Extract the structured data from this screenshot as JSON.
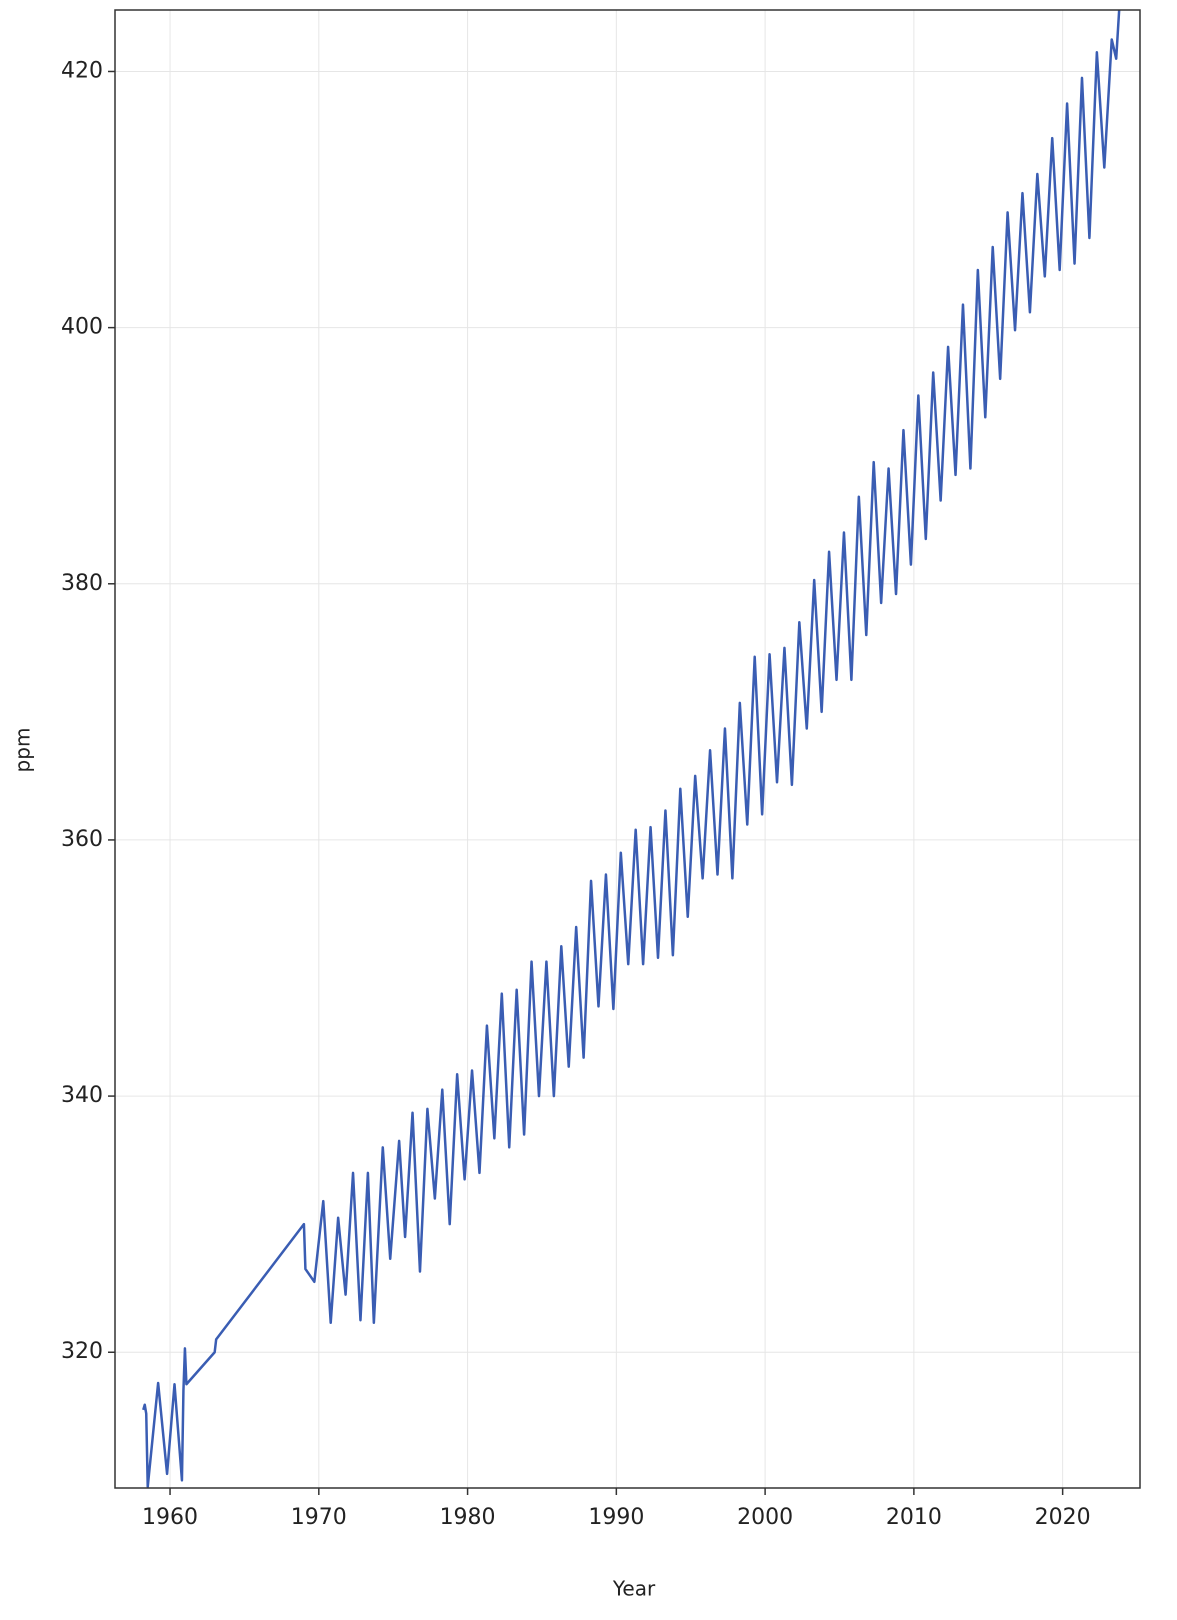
{
  "chart_data": {
    "type": "line",
    "x_label": "Year",
    "y_label": "ppm",
    "x": [
      1958.2,
      1958.3,
      1958.4,
      1958.5,
      1959.2,
      1959.8,
      1960.3,
      1960.8,
      1960.9,
      1961.0,
      1961.1,
      1963.0,
      1963.1,
      1969.0,
      1969.1,
      1969.7,
      1970.3,
      1970.8,
      1971.3,
      1971.8,
      1972.3,
      1972.8,
      1973.3,
      1973.7,
      1974.3,
      1974.8,
      1975.4,
      1975.8,
      1976.3,
      1976.8,
      1977.3,
      1977.8,
      1978.3,
      1978.8,
      1979.3,
      1979.8,
      1980.3,
      1980.8,
      1981.3,
      1981.8,
      1982.3,
      1982.8,
      1983.3,
      1983.8,
      1984.3,
      1984.8,
      1985.3,
      1985.8,
      1986.3,
      1986.8,
      1987.3,
      1987.8,
      1988.3,
      1988.8,
      1989.3,
      1989.8,
      1990.3,
      1990.8,
      1991.3,
      1991.8,
      1992.3,
      1992.8,
      1993.3,
      1993.8,
      1994.3,
      1994.8,
      1995.3,
      1995.8,
      1996.3,
      1996.8,
      1997.3,
      1997.8,
      1998.3,
      1998.8,
      1999.3,
      1999.8,
      2000.3,
      2000.8,
      2001.3,
      2001.8,
      2002.3,
      2002.8,
      2003.3,
      2003.8,
      2004.3,
      2004.8,
      2005.3,
      2005.8,
      2006.3,
      2006.8,
      2007.3,
      2007.8,
      2008.3,
      2008.8,
      2009.3,
      2009.8,
      2010.3,
      2010.8,
      2011.3,
      2011.8,
      2012.3,
      2012.8,
      2013.3,
      2013.8,
      2014.3,
      2014.8,
      2015.3,
      2015.8,
      2016.3,
      2016.8,
      2017.3,
      2017.8,
      2018.3,
      2018.8,
      2019.3,
      2019.8,
      2020.3,
      2020.8,
      2021.3,
      2021.8,
      2022.3,
      2022.8,
      2023.3,
      2023.6,
      2023.8
    ],
    "values": [
      315.5,
      315.9,
      315.2,
      309.5,
      317.6,
      310.5,
      317.5,
      310,
      317,
      320.3,
      317.5,
      320,
      321,
      330,
      326.5,
      325.5,
      331.8,
      322.3,
      330.5,
      324.5,
      334,
      322.5,
      334,
      322.3,
      336,
      327.3,
      336.5,
      329,
      338.7,
      326.3,
      339,
      332,
      340.5,
      330,
      341.7,
      333.5,
      342,
      334,
      345.5,
      336.7,
      348,
      336,
      348.3,
      337,
      350.5,
      340,
      350.5,
      340,
      351.7,
      342.3,
      353.2,
      343,
      356.8,
      347,
      357.3,
      346.8,
      359,
      350.3,
      360.8,
      350.3,
      361,
      350.8,
      362.3,
      351,
      364,
      354,
      365,
      357,
      367,
      357.3,
      368.7,
      357,
      370.7,
      361.2,
      374.3,
      362,
      374.5,
      364.5,
      375,
      364.3,
      377,
      368.7,
      380.3,
      370,
      382.5,
      372.5,
      384,
      372.5,
      386.8,
      376,
      389.5,
      378.5,
      389,
      379.2,
      392,
      381.5,
      394.7,
      383.5,
      396.5,
      386.5,
      398.5,
      388.5,
      401.8,
      389,
      404.5,
      393,
      406.3,
      396,
      409,
      399.8,
      410.5,
      401.2,
      412,
      404,
      414.8,
      404.5,
      417.5,
      405,
      419.5,
      407,
      421.5,
      412.5,
      422.5,
      421,
      424.8
    ],
    "color": "#3a5db3",
    "xlim": [
      1956.3,
      2025.2
    ],
    "ylim": [
      309.4,
      424.8
    ],
    "xticks": [
      1960,
      1970,
      1980,
      1990,
      2000,
      2010,
      2020
    ],
    "yticks": [
      320,
      340,
      360,
      380,
      400,
      420
    ],
    "grid": true
  }
}
